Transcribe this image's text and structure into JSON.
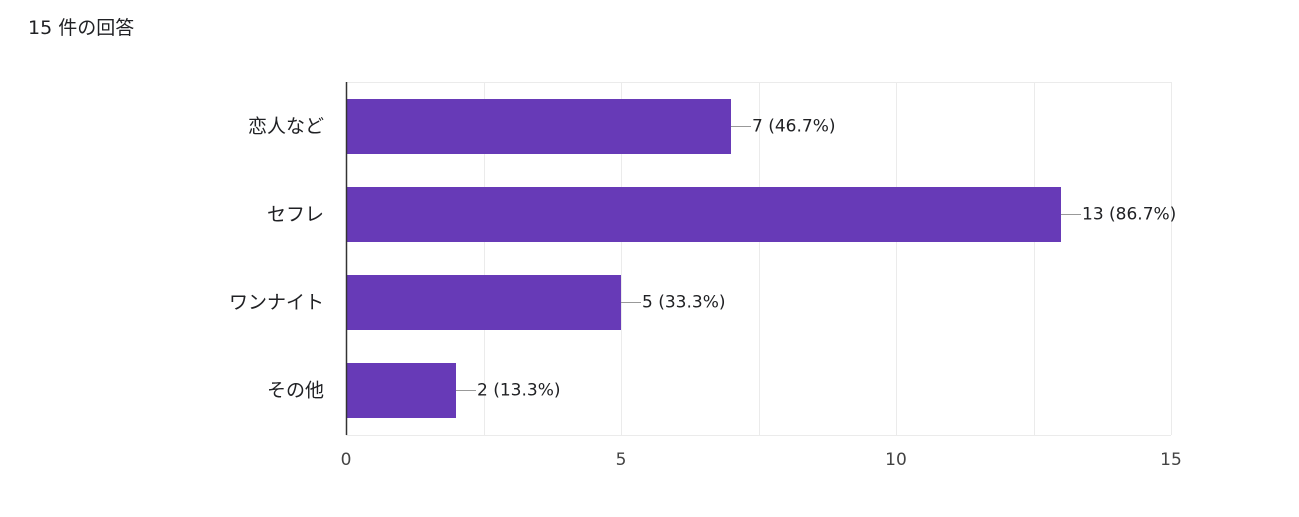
{
  "header": {
    "response_count": "15 件の回答"
  },
  "colors": {
    "bar": "#673ab7",
    "gridline": "#ebebeb",
    "axis": "#333333",
    "leader": "#999999"
  },
  "chart_data": {
    "type": "bar",
    "orientation": "horizontal",
    "categories": [
      "恋人など",
      "セフレ",
      "ワンナイト",
      "その他"
    ],
    "values": [
      7,
      13,
      5,
      2
    ],
    "value_labels": [
      "7 (46.7%)",
      "13 (86.7%)",
      "5 (33.3%)",
      "2 (13.3%)"
    ],
    "xlim": [
      0,
      15
    ],
    "xticks": [
      0,
      5,
      10,
      15
    ],
    "xtick_labels": [
      "0",
      "5",
      "10",
      "15"
    ],
    "grid": true,
    "legend": "none"
  }
}
